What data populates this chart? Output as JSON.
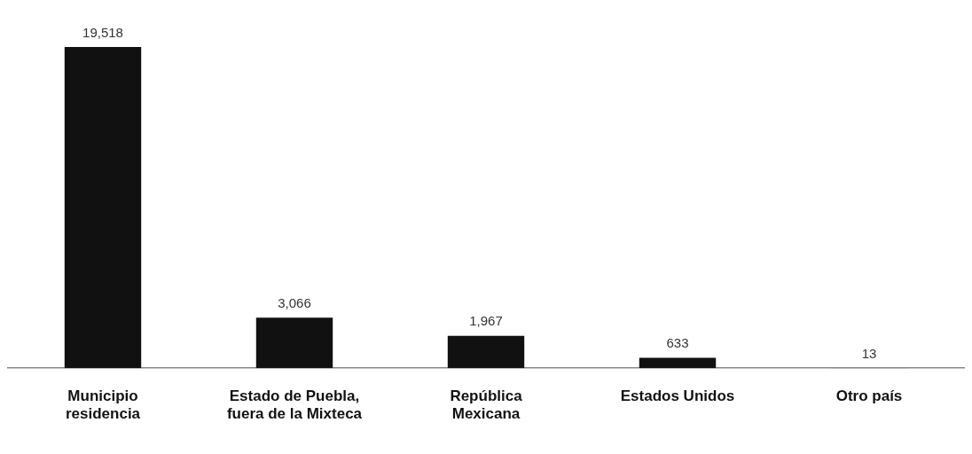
{
  "chart_data": {
    "type": "bar",
    "categories": [
      "Municipio residencia",
      "Estado de Puebla, fuera de la Mixteca",
      "República Mexicana",
      "Estados Unidos",
      "Otro país"
    ],
    "values": [
      19518,
      3066,
      1967,
      633,
      13
    ],
    "value_labels": [
      "19,518",
      "3,066",
      "1,967",
      "633",
      "13"
    ],
    "color": "#111111",
    "grid": false,
    "legend": false
  }
}
